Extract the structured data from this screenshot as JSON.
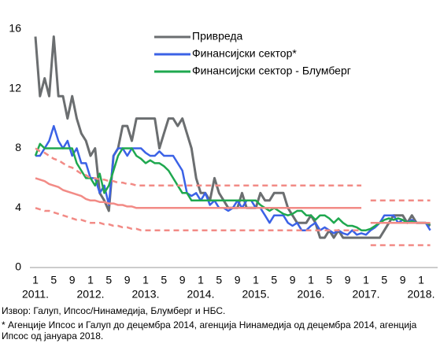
{
  "chart_data": {
    "type": "line",
    "categories": [
      "1",
      null,
      null,
      null,
      "5",
      null,
      null,
      null,
      "9",
      null,
      null,
      null,
      "1",
      null,
      null,
      null,
      "5",
      null,
      null,
      null,
      "9",
      null,
      null,
      null,
      "1",
      null,
      null,
      null,
      "5",
      null,
      null,
      null,
      "9",
      null,
      null,
      null,
      "1",
      null,
      null,
      null,
      "5",
      null,
      null,
      null,
      "9",
      null,
      null,
      null,
      "1",
      null,
      null,
      null,
      "5",
      null,
      null,
      null,
      "9",
      null,
      null,
      null,
      "1",
      null,
      null,
      null,
      "5",
      null,
      null,
      null,
      "9",
      null,
      null,
      null,
      "1",
      null,
      null,
      null,
      "5",
      null,
      null,
      null,
      "9",
      null,
      null,
      null,
      "1",
      null,
      null
    ],
    "years": [
      "2011.",
      "2012.",
      "2013.",
      "2014.",
      "2015.",
      "2016.",
      "2017.",
      "2018."
    ],
    "ylim": [
      0,
      16
    ],
    "yticks": [
      0,
      4,
      8,
      12,
      16
    ],
    "series": [
      {
        "name": "Привреда",
        "color": "#6b6e70",
        "width": 3,
        "values": [
          15.5,
          11.5,
          12.7,
          11.5,
          15.5,
          11.5,
          11.5,
          10,
          11.5,
          10,
          9,
          8.5,
          7.5,
          8,
          5,
          4.5,
          3.8,
          7.5,
          8,
          9.5,
          9.5,
          8.5,
          10,
          10,
          10,
          10,
          10,
          8,
          9,
          10,
          10,
          9.5,
          10,
          9,
          8,
          6,
          5,
          5,
          4.5,
          6,
          5,
          4.5,
          4,
          4,
          4,
          5,
          4,
          4,
          4,
          5,
          4.5,
          4.5,
          5,
          5,
          5,
          4,
          3.5,
          3,
          3,
          3,
          3.5,
          3,
          2,
          2,
          2.5,
          2,
          2.5,
          2,
          2,
          2,
          2,
          2,
          2,
          2,
          2,
          2,
          2.5,
          3,
          3.5,
          3.5,
          3.5,
          3,
          3.5,
          3,
          3,
          3,
          2.8
        ]
      },
      {
        "name": "Финансијски сектор*",
        "color": "#3b62e6",
        "width": 2.5,
        "values": [
          7.5,
          7.5,
          8,
          8.5,
          9.5,
          8.5,
          8,
          8.5,
          7.5,
          8,
          7,
          7,
          6,
          6,
          5,
          5.5,
          4.2,
          7.5,
          8,
          8,
          7.5,
          8,
          8,
          8,
          7.7,
          7.5,
          7.5,
          7.8,
          7.5,
          7.5,
          7.5,
          7,
          6.5,
          5,
          4.8,
          5,
          4.5,
          5,
          4.2,
          4.5,
          4,
          4,
          3.8,
          4,
          4.5,
          4,
          4.5,
          4.5,
          4,
          4,
          3.5,
          3,
          3.5,
          3.5,
          3.5,
          3,
          2.8,
          3,
          2.5,
          2.5,
          2.8,
          3,
          2.5,
          2.7,
          2.5,
          2.3,
          2.5,
          2.3,
          2.2,
          2.5,
          2.2,
          2.3,
          2.2,
          2.5,
          2.7,
          3,
          3.5,
          3.5,
          3.5,
          3,
          3.2,
          3,
          3.2,
          3,
          3,
          3,
          2.5
        ]
      },
      {
        "name": "Финансијски сектор - Блумберг",
        "color": "#1fa84f",
        "width": 2.5,
        "values": [
          7.5,
          8.3,
          8,
          8,
          8,
          8,
          8,
          8,
          8,
          7,
          6.5,
          6,
          6,
          5.5,
          6.3,
          5,
          5.5,
          6.5,
          7.5,
          8,
          8,
          8,
          7.5,
          7.3,
          7,
          7.2,
          7,
          7,
          6.8,
          6.5,
          6,
          5.5,
          5,
          5,
          4.5,
          4.5,
          4.5,
          4.5,
          4.5,
          4.5,
          4.5,
          4.5,
          4.5,
          4.5,
          4.5,
          4.5,
          4.5,
          4.5,
          4.5,
          4.2,
          4,
          3.8,
          4,
          3.8,
          3.6,
          3.5,
          3.6,
          3.8,
          3.8,
          3.5,
          3.5,
          3.2,
          3.5,
          3.5,
          3.3,
          3,
          3.3,
          3,
          2.8,
          2.8,
          2.7,
          2.5,
          2.5,
          2.6,
          2.8,
          3,
          3.2,
          3.3,
          3.2,
          3.3,
          3.2,
          3,
          3.1,
          3,
          3,
          3,
          2.9
        ]
      },
      {
        "color": "#f28b86",
        "width": 2.5,
        "values": [
          6,
          5.9,
          5.8,
          5.6,
          5.5,
          5.4,
          5.2,
          5.1,
          5,
          4.9,
          4.8,
          4.6,
          4.5,
          4.5,
          4.4,
          4.4,
          4.3,
          4.3,
          4.2,
          4.2,
          4.1,
          4.1,
          4,
          4,
          4,
          4,
          4,
          4,
          4,
          4,
          4,
          4,
          4,
          4,
          4,
          4,
          4,
          4,
          4,
          4,
          4,
          4,
          4,
          4,
          4,
          4,
          4,
          4,
          4,
          4,
          4,
          4,
          4,
          4,
          4,
          4,
          4,
          4,
          4,
          4,
          4,
          4,
          4,
          4,
          4,
          4,
          4,
          4,
          4,
          4,
          4,
          4,
          null,
          3,
          3,
          3,
          3,
          3,
          3,
          3,
          3,
          3,
          3,
          3,
          3,
          3,
          3
        ]
      },
      {
        "color": "#f28b86",
        "width": 2.5,
        "dash": true,
        "values": [
          8,
          7.8,
          7.7,
          7.5,
          7.3,
          7.2,
          7,
          6.8,
          6.7,
          6.5,
          6.3,
          6.2,
          6,
          6,
          5.9,
          5.9,
          5.8,
          5.8,
          5.7,
          5.7,
          5.6,
          5.6,
          5.5,
          5.5,
          5.5,
          5.5,
          5.5,
          5.5,
          5.5,
          5.5,
          5.5,
          5.5,
          5.5,
          5.5,
          5.5,
          5.5,
          5.5,
          5.5,
          5.5,
          5.5,
          5.5,
          5.5,
          5.5,
          5.5,
          5.5,
          5.5,
          5.5,
          5.5,
          5.5,
          5.5,
          5.5,
          5.5,
          5.5,
          5.5,
          5.5,
          5.5,
          5.5,
          5.5,
          5.5,
          5.5,
          5.5,
          5.5,
          5.5,
          5.5,
          5.5,
          5.5,
          5.5,
          5.5,
          5.5,
          5.5,
          5.5,
          5.5,
          null,
          4.5,
          4.5,
          4.5,
          4.5,
          4.5,
          4.5,
          4.5,
          4.5,
          4.5,
          4.5,
          4.5,
          4.5,
          4.5,
          4.5
        ]
      },
      {
        "color": "#f28b86",
        "width": 2.5,
        "dash": true,
        "values": [
          4,
          3.9,
          3.8,
          3.8,
          3.7,
          3.6,
          3.5,
          3.4,
          3.3,
          3.2,
          3.2,
          3.1,
          3,
          3,
          3,
          2.9,
          2.9,
          2.8,
          2.8,
          2.7,
          2.7,
          2.6,
          2.6,
          2.5,
          2.5,
          2.5,
          2.5,
          2.5,
          2.5,
          2.5,
          2.5,
          2.5,
          2.5,
          2.5,
          2.5,
          2.5,
          2.5,
          2.5,
          2.5,
          2.5,
          2.5,
          2.5,
          2.5,
          2.5,
          2.5,
          2.5,
          2.5,
          2.5,
          2.5,
          2.5,
          2.5,
          2.5,
          2.5,
          2.5,
          2.5,
          2.5,
          2.5,
          2.5,
          2.5,
          2.5,
          2.5,
          2.5,
          2.5,
          2.5,
          2.5,
          2.5,
          2.5,
          2.5,
          2.5,
          2.5,
          2.5,
          2.5,
          null,
          1.5,
          1.5,
          1.5,
          1.5,
          1.5,
          1.5,
          1.5,
          1.5,
          1.5,
          1.5,
          1.5,
          1.5,
          1.5,
          1.5
        ]
      }
    ],
    "source": "Извор: Галуп, Ипсос/Нинамедија, Блумберг и НБС.",
    "note": "* Агенције Ипсос и Галуп до децембра 2014, агенција Нинамедија од децембра 2014, агенција Ипсос од јануара 2018."
  }
}
